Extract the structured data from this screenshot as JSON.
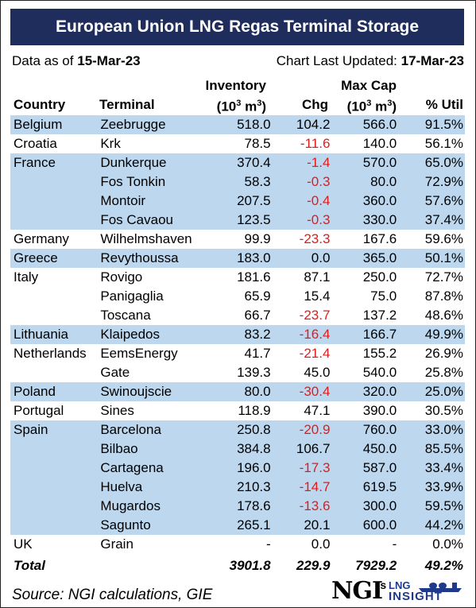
{
  "title": "European Union LNG Regas Terminal Storage",
  "data_as_of_label": "Data as of",
  "data_as_of": "15-Mar-23",
  "updated_label": "Chart Last Updated:",
  "updated": "17-Mar-23",
  "headers": {
    "country": "Country",
    "terminal": "Terminal",
    "inventory_top": "Inventory",
    "inventory_unit_open": "(10",
    "inventory_unit_exp": "3",
    "inventory_unit_close": " m",
    "inventory_unit_exp2": "3",
    "inventory_unit_end": ")",
    "chg": "Chg",
    "maxcap_top": "Max Cap",
    "maxcap_unit_open": "(10",
    "maxcap_unit_exp": "3",
    "maxcap_unit_close": " m",
    "maxcap_unit_exp2": "3",
    "maxcap_unit_end": ")",
    "util": "% Util"
  },
  "rows": [
    {
      "country": "Belgium",
      "terminal": "Zeebrugge",
      "inventory": "518.0",
      "chg": "104.2",
      "maxcap": "566.0",
      "util": "91.5%",
      "shade": true
    },
    {
      "country": "Croatia",
      "terminal": "Krk",
      "inventory": "78.5",
      "chg": "-11.6",
      "maxcap": "140.0",
      "util": "56.1%",
      "shade": false
    },
    {
      "country": "France",
      "terminal": "Dunkerque",
      "inventory": "370.4",
      "chg": "-1.4",
      "maxcap": "570.0",
      "util": "65.0%",
      "shade": true
    },
    {
      "country": "",
      "terminal": "Fos Tonkin",
      "inventory": "58.3",
      "chg": "-0.3",
      "maxcap": "80.0",
      "util": "72.9%",
      "shade": true
    },
    {
      "country": "",
      "terminal": "Montoir",
      "inventory": "207.5",
      "chg": "-0.4",
      "maxcap": "360.0",
      "util": "57.6%",
      "shade": true
    },
    {
      "country": "",
      "terminal": "Fos Cavaou",
      "inventory": "123.5",
      "chg": "-0.3",
      "maxcap": "330.0",
      "util": "37.4%",
      "shade": true
    },
    {
      "country": "Germany",
      "terminal": "Wilhelmshaven",
      "inventory": "99.9",
      "chg": "-23.3",
      "maxcap": "167.6",
      "util": "59.6%",
      "shade": false
    },
    {
      "country": "Greece",
      "terminal": "Revythoussa",
      "inventory": "183.0",
      "chg": "0.0",
      "maxcap": "365.0",
      "util": "50.1%",
      "shade": true
    },
    {
      "country": "Italy",
      "terminal": "Rovigo",
      "inventory": "181.6",
      "chg": "87.1",
      "maxcap": "250.0",
      "util": "72.7%",
      "shade": false
    },
    {
      "country": "",
      "terminal": "Panigaglia",
      "inventory": "65.9",
      "chg": "15.4",
      "maxcap": "75.0",
      "util": "87.8%",
      "shade": false
    },
    {
      "country": "",
      "terminal": "Toscana",
      "inventory": "66.7",
      "chg": "-23.7",
      "maxcap": "137.2",
      "util": "48.6%",
      "shade": false
    },
    {
      "country": "Lithuania",
      "terminal": "Klaipedos",
      "inventory": "83.2",
      "chg": "-16.4",
      "maxcap": "166.7",
      "util": "49.9%",
      "shade": true
    },
    {
      "country": "Netherlands",
      "terminal": "EemsEnergy",
      "inventory": "41.7",
      "chg": "-21.4",
      "maxcap": "155.2",
      "util": "26.9%",
      "shade": false
    },
    {
      "country": "",
      "terminal": "Gate",
      "inventory": "139.3",
      "chg": "45.0",
      "maxcap": "540.0",
      "util": "25.8%",
      "shade": false
    },
    {
      "country": "Poland",
      "terminal": "Swinoujscie",
      "inventory": "80.0",
      "chg": "-30.4",
      "maxcap": "320.0",
      "util": "25.0%",
      "shade": true
    },
    {
      "country": "Portugal",
      "terminal": "Sines",
      "inventory": "118.9",
      "chg": "47.1",
      "maxcap": "390.0",
      "util": "30.5%",
      "shade": false
    },
    {
      "country": "Spain",
      "terminal": "Barcelona",
      "inventory": "250.8",
      "chg": "-20.9",
      "maxcap": "760.0",
      "util": "33.0%",
      "shade": true
    },
    {
      "country": "",
      "terminal": "Bilbao",
      "inventory": "384.8",
      "chg": "106.7",
      "maxcap": "450.0",
      "util": "85.5%",
      "shade": true
    },
    {
      "country": "",
      "terminal": "Cartagena",
      "inventory": "196.0",
      "chg": "-17.3",
      "maxcap": "587.0",
      "util": "33.4%",
      "shade": true
    },
    {
      "country": "",
      "terminal": "Huelva",
      "inventory": "210.3",
      "chg": "-14.7",
      "maxcap": "619.5",
      "util": "33.9%",
      "shade": true
    },
    {
      "country": "",
      "terminal": "Mugardos",
      "inventory": "178.6",
      "chg": "-13.6",
      "maxcap": "300.0",
      "util": "59.5%",
      "shade": true
    },
    {
      "country": "",
      "terminal": "Sagunto",
      "inventory": "265.1",
      "chg": "20.1",
      "maxcap": "600.0",
      "util": "44.2%",
      "shade": true
    },
    {
      "country": "UK",
      "terminal": "Grain",
      "inventory": "-",
      "chg": "0.0",
      "maxcap": "-",
      "util": "0.0%",
      "shade": false
    }
  ],
  "total": {
    "label": "Total",
    "inventory": "3901.8",
    "chg": "229.9",
    "maxcap": "7929.2",
    "util": "49.2%"
  },
  "source": "Source: NGI calculations, GIE",
  "logo": {
    "ngi": "NGI",
    "apostrophe": "'s",
    "lng": "LNG",
    "insight": "INSIGHT"
  },
  "colors": {
    "title_bg": "#1f2d5c",
    "shade": "#bdd7ee",
    "negative": "#e21b1b",
    "logo_blue": "#1f3a8a"
  }
}
